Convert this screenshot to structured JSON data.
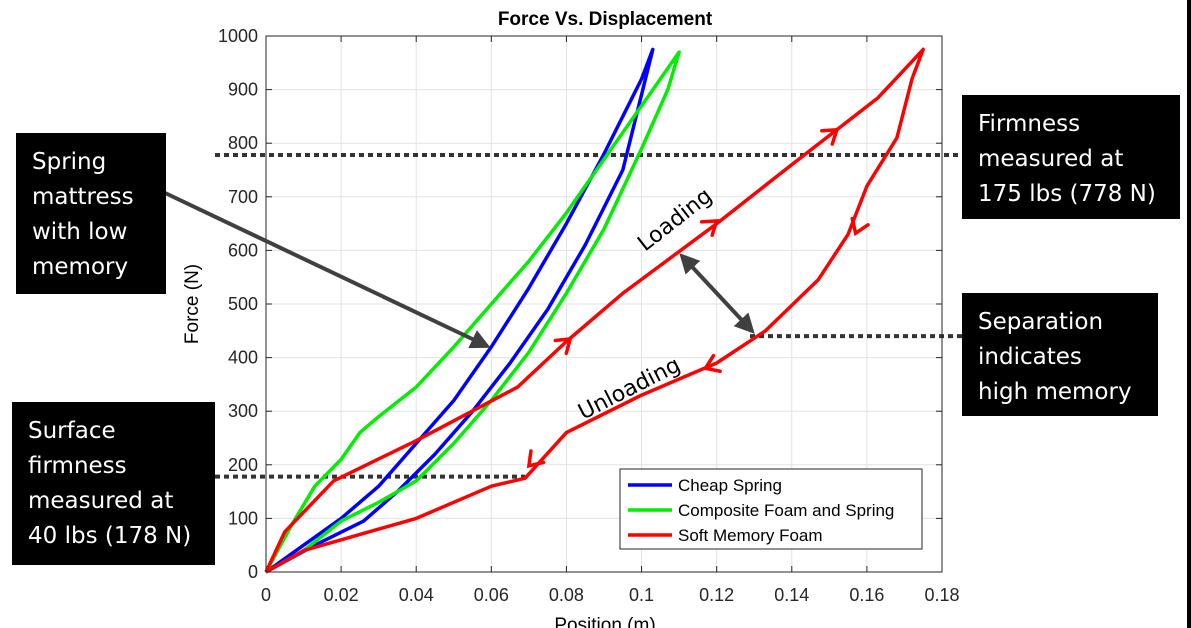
{
  "chart_data": {
    "type": "line",
    "title": "Force Vs. Displacement",
    "xlabel": "Position (m)",
    "ylabel": "Force (N)",
    "xlim": [
      0,
      0.18
    ],
    "ylim": [
      0,
      1000
    ],
    "xticks": [
      0,
      0.02,
      0.04,
      0.06,
      0.08,
      0.1,
      0.12,
      0.14,
      0.16,
      0.18
    ],
    "xtick_labels": [
      "0",
      "0.02",
      "0.04",
      "0.06",
      "0.08",
      "0.1",
      "0.12",
      "0.14",
      "0.16",
      "0.18"
    ],
    "yticks": [
      0,
      100,
      200,
      300,
      400,
      500,
      600,
      700,
      800,
      900,
      1000
    ],
    "ytick_labels": [
      "0",
      "100",
      "200",
      "300",
      "400",
      "500",
      "600",
      "700",
      "800",
      "900",
      "1000"
    ],
    "grid": true,
    "legend_position": "bottom-right",
    "series": [
      {
        "name": "Cheap Spring",
        "color": "#0000ff",
        "points": [
          [
            0,
            0
          ],
          [
            0.013,
            50
          ],
          [
            0.026,
            95
          ],
          [
            0.035,
            150
          ],
          [
            0.045,
            220
          ],
          [
            0.055,
            300
          ],
          [
            0.065,
            390
          ],
          [
            0.075,
            490
          ],
          [
            0.085,
            610
          ],
          [
            0.095,
            750
          ],
          [
            0.103,
            975
          ],
          [
            0.1,
            920
          ],
          [
            0.09,
            780
          ],
          [
            0.08,
            650
          ],
          [
            0.07,
            530
          ],
          [
            0.06,
            420
          ],
          [
            0.05,
            320
          ],
          [
            0.04,
            240
          ],
          [
            0.03,
            160
          ],
          [
            0.02,
            100
          ],
          [
            0.01,
            50
          ],
          [
            0,
            0
          ]
        ]
      },
      {
        "name": "Composite Foam and Spring",
        "color": "#00ee00",
        "points": [
          [
            0,
            0
          ],
          [
            0.01,
            40
          ],
          [
            0.02,
            95
          ],
          [
            0.03,
            130
          ],
          [
            0.04,
            170
          ],
          [
            0.05,
            240
          ],
          [
            0.06,
            320
          ],
          [
            0.07,
            410
          ],
          [
            0.08,
            520
          ],
          [
            0.09,
            640
          ],
          [
            0.1,
            790
          ],
          [
            0.107,
            900
          ],
          [
            0.11,
            970
          ],
          [
            0.1,
            870
          ],
          [
            0.09,
            770
          ],
          [
            0.08,
            670
          ],
          [
            0.07,
            580
          ],
          [
            0.06,
            500
          ],
          [
            0.05,
            420
          ],
          [
            0.04,
            345
          ],
          [
            0.03,
            290
          ],
          [
            0.025,
            260
          ],
          [
            0.02,
            210
          ],
          [
            0.013,
            160
          ],
          [
            0.007,
            90
          ],
          [
            0,
            0
          ]
        ]
      },
      {
        "name": "Soft Memory Foam",
        "color": "#ff0000",
        "points": [
          [
            0,
            0
          ],
          [
            0.005,
            75
          ],
          [
            0.018,
            170
          ],
          [
            0.04,
            245
          ],
          [
            0.067,
            345
          ],
          [
            0.08,
            430
          ],
          [
            0.095,
            520
          ],
          [
            0.12,
            650
          ],
          [
            0.14,
            760
          ],
          [
            0.152,
            825
          ],
          [
            0.163,
            885
          ],
          [
            0.175,
            975
          ],
          [
            0.172,
            920
          ],
          [
            0.168,
            810
          ],
          [
            0.16,
            720
          ],
          [
            0.155,
            630
          ],
          [
            0.147,
            545
          ],
          [
            0.133,
            450
          ],
          [
            0.12,
            390
          ],
          [
            0.1,
            330
          ],
          [
            0.08,
            260
          ],
          [
            0.069,
            175
          ],
          [
            0.06,
            160
          ],
          [
            0.04,
            100
          ],
          [
            0.03,
            80
          ],
          [
            0.01,
            40
          ],
          [
            0,
            0
          ]
        ]
      }
    ],
    "threshold_lines": [
      {
        "y": 778,
        "x_from": 0.0,
        "x_to": 0.18
      },
      {
        "y": 440,
        "x_from": 0.13,
        "x_to": 0.18
      },
      {
        "y": 178,
        "x_from": 0.0,
        "x_to": 0.07
      }
    ],
    "direction_arrows": [
      {
        "series": 2,
        "x": 0.081,
        "y": 435
      },
      {
        "series": 2,
        "x": 0.12,
        "y": 655
      },
      {
        "series": 2,
        "x": 0.152,
        "y": 825
      },
      {
        "series": 2,
        "x": 0.157,
        "y": 632
      },
      {
        "series": 2,
        "x": 0.117,
        "y": 380
      },
      {
        "series": 2,
        "x": 0.07,
        "y": 198
      }
    ],
    "annotations": {
      "loading": "Loading",
      "unloading": "Unloading"
    }
  },
  "callouts": {
    "spring": "Spring\nmattress\nwith low\nmemory",
    "firmness": "Firmness\nmeasured at\n175 lbs (778 N)",
    "separation": "Separation\nindicates\nhigh memory",
    "surface": "Surface\nfirmness\nmeasured at\n40 lbs (178 N)"
  }
}
